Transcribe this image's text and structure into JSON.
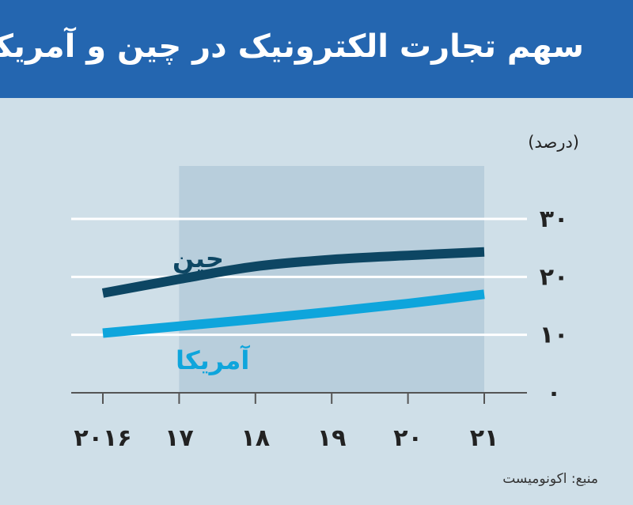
{
  "header": {
    "title": "سهم تجارت الکترونیک در چین و آمریکا"
  },
  "unit_label": "(درصد)",
  "source": "منبع: اکونومیست",
  "colors": {
    "header_bg": "#2466b0",
    "background": "#cfdfe8",
    "shade": "#b8cedc",
    "china": "#0d4663",
    "us": "#0ea5dc"
  },
  "chart_data": {
    "type": "line",
    "x": [
      2016,
      2017,
      2018,
      2019,
      2020,
      2021
    ],
    "x_tick_labels": [
      "۲۰۱۶",
      "۱۷",
      "۱۸",
      "۱۹",
      "۲۰",
      "۲۱"
    ],
    "y_tick_values": [
      0,
      10,
      20,
      30
    ],
    "y_tick_labels": [
      "۰",
      "۱۰",
      "۲۰",
      "۳۰"
    ],
    "ylim": [
      0,
      30
    ],
    "grid": true,
    "shaded_range": [
      2017,
      2021
    ],
    "series": [
      {
        "name": "چین",
        "color": "#0d4663",
        "values": [
          17.2,
          19.6,
          21.8,
          23.0,
          23.7,
          24.3
        ]
      },
      {
        "name": "آمریکا",
        "color": "#0ea5dc",
        "values": [
          10.3,
          11.5,
          12.7,
          14.0,
          15.4,
          17.0
        ]
      }
    ]
  }
}
